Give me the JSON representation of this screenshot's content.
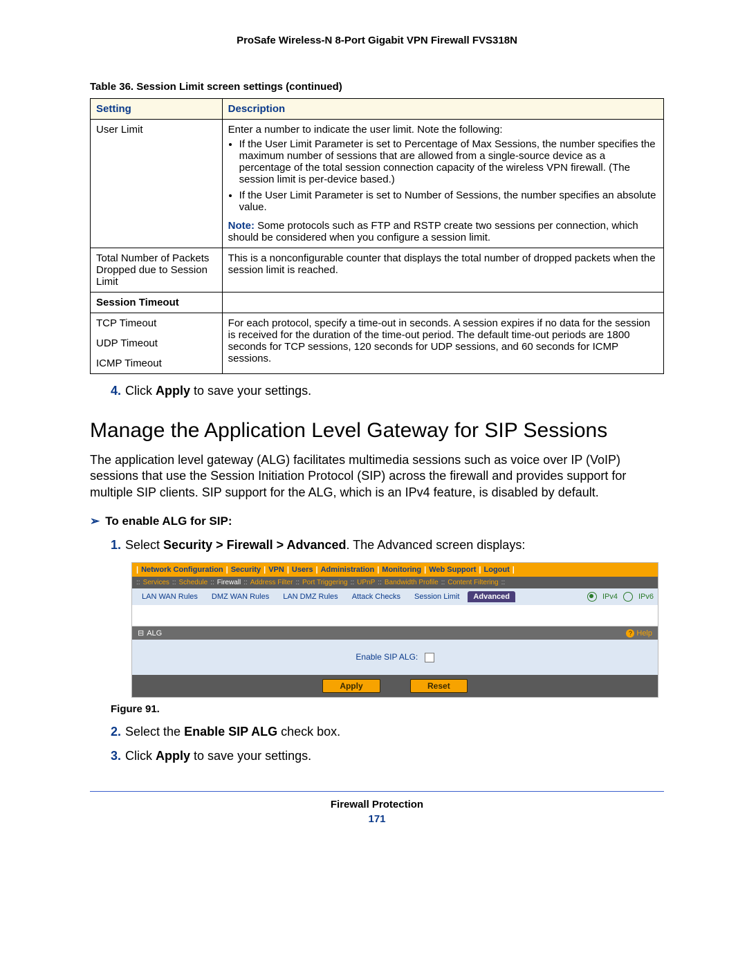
{
  "doc_header": "ProSafe Wireless-N 8-Port Gigabit VPN Firewall FVS318N",
  "table_caption": "Table 36.  Session Limit screen settings (continued)",
  "table": {
    "headers": [
      "Setting",
      "Description"
    ],
    "rows": {
      "user_limit": {
        "setting": "User Limit",
        "desc_intro": "Enter a number to indicate the user limit. Note the following:",
        "bullet1": "If the User Limit Parameter is set to Percentage of Max Sessions, the number specifies the maximum number of sessions that are allowed from a single-source device as a percentage of the total session connection capacity of the wireless VPN firewall. (The session limit is per-device based.)",
        "bullet2": "If the User Limit Parameter is set to Number of Sessions, the number specifies an absolute value.",
        "note_label": "Note:",
        "note_text": "  Some protocols such as FTP and RSTP create two sessions per connection, which should be considered when you configure a session limit."
      },
      "packets_dropped": {
        "setting": "Total Number of Packets Dropped due to Session Limit",
        "desc": "This is a nonconfigurable counter that displays the total number of dropped packets when the session limit is reached."
      },
      "session_timeout_header": "Session Timeout",
      "tcp": {
        "setting": "TCP Timeout"
      },
      "udp": {
        "setting": "UDP Timeout"
      },
      "icmp": {
        "setting": "ICMP Timeout"
      },
      "timeout_desc": "For each protocol, specify a time-out in seconds. A session expires if no data for the session is received for the duration of the time-out period. The default time-out periods are 1800 seconds for TCP sessions, 120 seconds for UDP sessions, and 60 seconds for ICMP sessions."
    }
  },
  "step4_num": "4.",
  "step4_a": "Click ",
  "step4_b": "Apply",
  "step4_c": " to save your settings.",
  "section_title": "Manage the Application Level Gateway for SIP Sessions",
  "section_para": "The application level gateway (ALG) facilitates multimedia sessions such as voice over IP (VoIP) sessions that use the Session Initiation Protocol (SIP) across the firewall and provides support for multiple SIP clients. SIP support for the ALG, which is an IPv4 feature, is disabled by default.",
  "procedure_heading": "To enable ALG for SIP:",
  "step1_num": "1.",
  "step1_a": "Select ",
  "step1_b": "Security > Firewall > Advanced",
  "step1_c": ". The Advanced screen displays:",
  "figure_caption": "Figure 91.",
  "step2_num": "2.",
  "step2_a": "Select the ",
  "step2_b": "Enable SIP ALG",
  "step2_c": " check box.",
  "step3_num": "3.",
  "step3_a": "Click ",
  "step3_b": "Apply",
  "step3_c": " to save your settings.",
  "footer_label": "Firewall Protection",
  "footer_page": "171",
  "ui": {
    "topnav": [
      "Network Configuration",
      "Security",
      "VPN",
      "Users",
      "Administration",
      "Monitoring",
      "Web Support",
      "Logout"
    ],
    "subnav": [
      "Services",
      "Schedule",
      "Firewall",
      "Address Filter",
      "Port Triggering",
      "UPnP",
      "Bandwidth Profile",
      "Content Filtering"
    ],
    "subnav_active_index": 2,
    "tabs": [
      "LAN WAN Rules",
      "DMZ WAN Rules",
      "LAN DMZ Rules",
      "Attack Checks",
      "Session Limit",
      "Advanced"
    ],
    "tab_active_index": 5,
    "ipv4_label": "IPv4",
    "ipv6_label": "IPv6",
    "ipv4_checked": true,
    "alg_header": "ALG",
    "help_label": "Help",
    "enable_sip_label": "Enable SIP ALG:",
    "enable_sip_checked": false,
    "apply_label": "Apply",
    "reset_label": "Reset",
    "colors": {
      "orange": "#f7a300",
      "navlink": "#0b3a8a",
      "darkbar": "#5a5a5a",
      "tabbar": "#dde7f3",
      "tab_active": "#4a3f7a",
      "green": "#2a7a2a"
    }
  }
}
